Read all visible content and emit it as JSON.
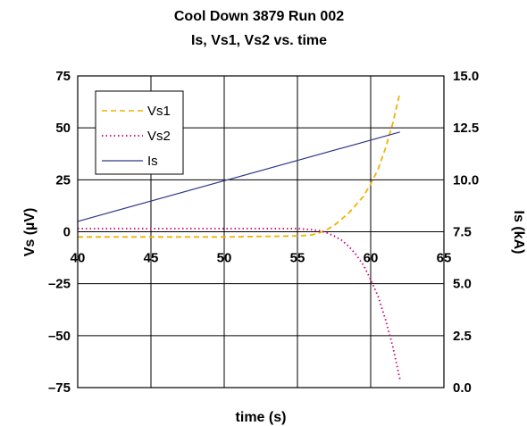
{
  "chart_data": {
    "type": "line",
    "title_lines": [
      "Cool Down 3879  Run 002",
      "Is, Vs1, Vs2 vs. time"
    ],
    "xlabel": "time (s)",
    "ylabel": "Vs (µV)",
    "y2label": "Is (kA)",
    "xlim": [
      40,
      65
    ],
    "ylim": [
      -75,
      75
    ],
    "y2lim": [
      0,
      15
    ],
    "x_ticks": [
      "40",
      "45",
      "50",
      "55",
      "60",
      "65"
    ],
    "y_ticks": [
      "75",
      "50",
      "25",
      "0",
      "-25",
      "-50",
      "-75"
    ],
    "y2_ticks": [
      "15.0",
      "12.5",
      "10.0",
      "7.5",
      "5.0",
      "2.5",
      "0.0"
    ],
    "grid": true,
    "legend_position": "top-left",
    "series": [
      {
        "name": "Vs1",
        "axis": "left",
        "color": "#f2b100",
        "dash": "dashed",
        "x": [
          40,
          45,
          50,
          55,
          56,
          56.5,
          57,
          57.5,
          58,
          58.5,
          59,
          59.5,
          60,
          60.5,
          61,
          61.5,
          62
        ],
        "y": [
          -2.5,
          -2.5,
          -2.5,
          -2,
          -1.5,
          -0.5,
          1,
          3,
          6,
          9,
          13,
          17,
          23,
          30,
          40,
          52,
          67
        ]
      },
      {
        "name": "Vs2",
        "axis": "left",
        "color": "#cc0077",
        "dash": "dotted",
        "x": [
          40,
          45,
          50,
          55,
          56,
          56.5,
          57,
          57.5,
          58,
          58.5,
          59,
          59.5,
          60,
          60.5,
          61,
          61.5,
          62
        ],
        "y": [
          1.5,
          1.5,
          1.5,
          1.5,
          1,
          0.5,
          -0.5,
          -2,
          -4,
          -7,
          -11,
          -16,
          -23,
          -31,
          -42,
          -55,
          -71
        ]
      },
      {
        "name": "Is",
        "axis": "right",
        "color": "#2e3a87",
        "dash": "solid",
        "x": [
          40,
          62
        ],
        "y": [
          8.0,
          12.3
        ]
      }
    ]
  }
}
